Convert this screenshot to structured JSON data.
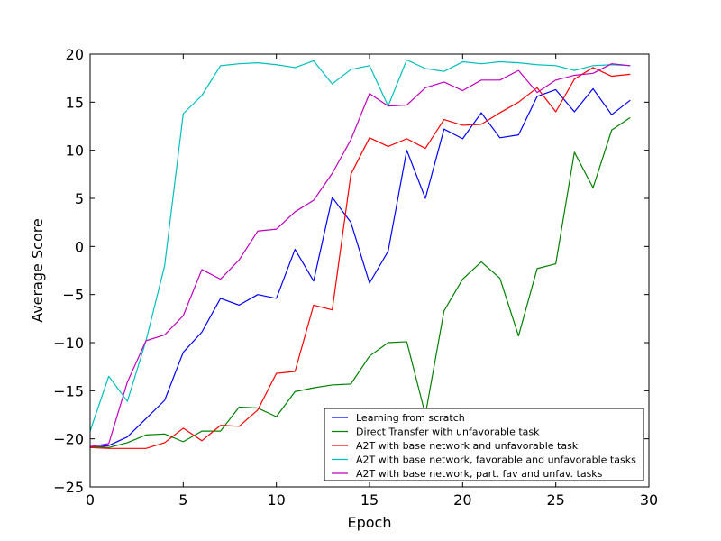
{
  "chart_data": {
    "type": "line",
    "title": "",
    "xlabel": "Epoch",
    "ylabel": "Average Score",
    "xlim": [
      0,
      30
    ],
    "ylim": [
      -25,
      20
    ],
    "xticks": [
      0,
      5,
      10,
      15,
      20,
      25,
      30
    ],
    "yticks": [
      -25,
      -20,
      -15,
      -10,
      -5,
      0,
      5,
      10,
      15,
      20
    ],
    "xtick_labels": [
      "0",
      "5",
      "10",
      "15",
      "20",
      "25",
      "30"
    ],
    "ytick_labels": [
      "−25",
      "−20",
      "−15",
      "−10",
      "−5",
      "0",
      "5",
      "10",
      "15",
      "20"
    ],
    "grid": false,
    "legend_position": "bottom-right",
    "x": [
      0,
      1,
      2,
      3,
      4,
      5,
      6,
      7,
      8,
      9,
      10,
      11,
      12,
      13,
      14,
      15,
      16,
      17,
      18,
      19,
      20,
      21,
      22,
      23,
      24,
      25,
      26,
      27,
      28,
      29
    ],
    "series": [
      {
        "name": "Learning from scratch",
        "color": "#0000ff",
        "values": [
          -20.9,
          -20.7,
          -19.8,
          -17.9,
          -16.0,
          -11.0,
          -8.9,
          -5.4,
          -6.1,
          -5.0,
          -5.4,
          -0.3,
          -3.6,
          5.1,
          2.5,
          -3.8,
          -0.5,
          10.0,
          5.0,
          12.2,
          11.2,
          13.9,
          11.3,
          11.6,
          15.6,
          16.3,
          14.0,
          16.4,
          13.7,
          15.2
        ]
      },
      {
        "name": "Direct Transfer with unfavorable task",
        "color": "#008000",
        "values": [
          -20.8,
          -20.9,
          -20.4,
          -19.6,
          -19.5,
          -20.3,
          -19.2,
          -19.2,
          -16.7,
          -16.8,
          -17.7,
          -15.1,
          -14.7,
          -14.4,
          -14.3,
          -11.4,
          -10.0,
          -9.9,
          -17.5,
          -6.7,
          -3.4,
          -1.6,
          -3.3,
          -9.3,
          -2.3,
          -1.8,
          9.8,
          6.1,
          12.1,
          13.4
        ]
      },
      {
        "name": "A2T with base network and unfavorable task",
        "color": "#ff0000",
        "values": [
          -20.9,
          -21.0,
          -21.0,
          -21.0,
          -20.4,
          -18.9,
          -20.2,
          -18.6,
          -18.7,
          -17.0,
          -13.2,
          -13.0,
          -6.1,
          -6.6,
          7.5,
          11.3,
          10.4,
          11.2,
          10.2,
          13.2,
          12.6,
          12.7,
          13.9,
          15.0,
          16.5,
          14.0,
          17.4,
          18.6,
          17.7,
          17.9
        ]
      },
      {
        "name": "A2T with base network, favorable and unfavorable tasks",
        "color": "#00bfbf",
        "values": [
          -19.2,
          -13.5,
          -16.1,
          -9.8,
          -2.0,
          13.8,
          15.7,
          18.8,
          19.0,
          19.1,
          18.9,
          18.6,
          19.3,
          16.9,
          18.4,
          18.8,
          14.6,
          19.4,
          18.5,
          18.2,
          19.2,
          19.0,
          19.2,
          19.1,
          18.9,
          18.8,
          18.3,
          18.8,
          18.9,
          18.8
        ]
      },
      {
        "name": "A2T with base network, part. fav and unfav. tasks",
        "color": "#bf00bf",
        "values": [
          -20.8,
          -20.5,
          -14.1,
          -9.8,
          -9.2,
          -7.2,
          -2.4,
          -3.4,
          -1.4,
          1.6,
          1.8,
          3.6,
          4.8,
          7.6,
          11.1,
          15.9,
          14.6,
          14.7,
          16.5,
          17.1,
          16.2,
          17.3,
          17.3,
          18.3,
          16.0,
          17.3,
          17.8,
          18.0,
          19.0,
          18.8
        ]
      }
    ]
  }
}
